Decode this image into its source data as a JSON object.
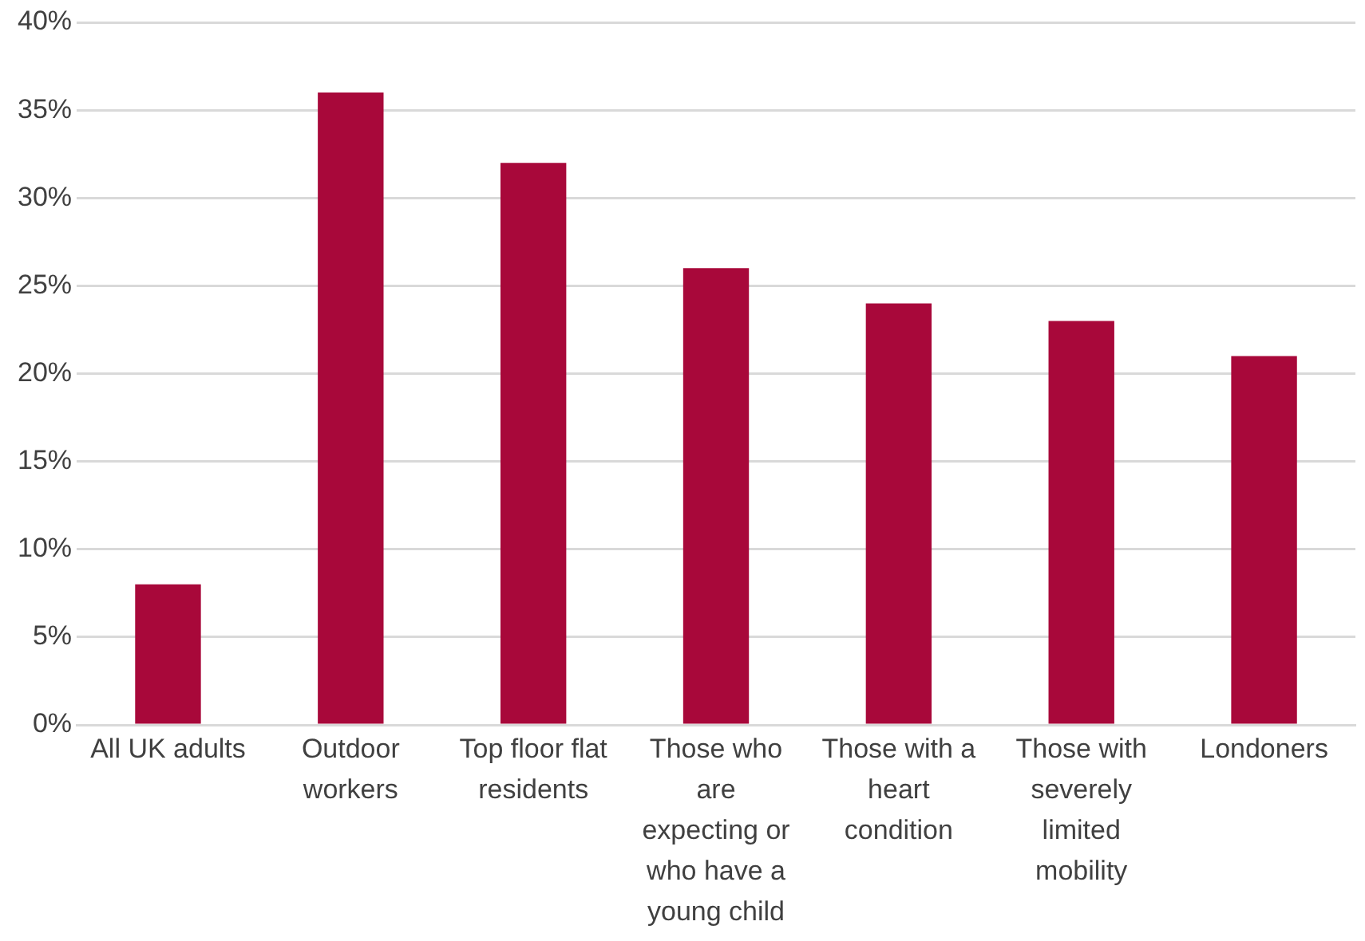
{
  "chart_data": {
    "type": "bar",
    "categories": [
      "All UK adults",
      "Outdoor workers",
      "Top floor flat residents",
      "Those who are expecting or who have a young child",
      "Those with a heart condition",
      "Those with severely limited mobility",
      "Londoners"
    ],
    "values": [
      8,
      36,
      32,
      26,
      24,
      23,
      21
    ],
    "color": "#a8083a",
    "ylim": [
      0,
      40
    ],
    "yticks": [
      {
        "value": 0,
        "label": "0%"
      },
      {
        "value": 5,
        "label": "5%"
      },
      {
        "value": 10,
        "label": "10%"
      },
      {
        "value": 15,
        "label": "15%"
      },
      {
        "value": 20,
        "label": "20%"
      },
      {
        "value": 25,
        "label": "25%"
      },
      {
        "value": 30,
        "label": "30%"
      },
      {
        "value": 35,
        "label": "35%"
      },
      {
        "value": 40,
        "label": "40%"
      }
    ],
    "grid": "y",
    "legend": false
  }
}
